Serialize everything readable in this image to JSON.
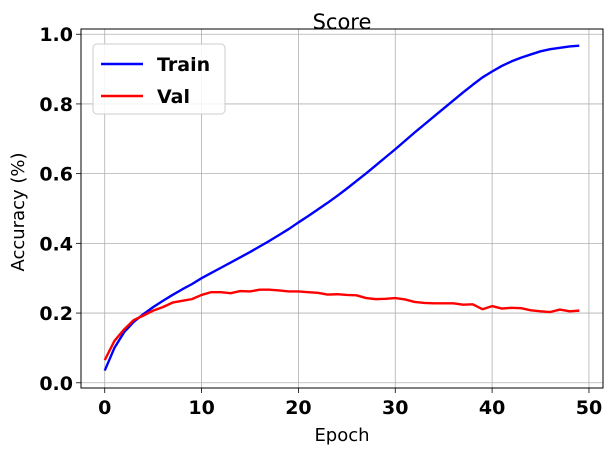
{
  "chart_data": {
    "type": "line",
    "title": "Score",
    "xlabel": "Epoch",
    "ylabel": "Accuracy (%)",
    "xlim": [
      -2.45,
      51.45
    ],
    "ylim": [
      -0.015,
      1.015
    ],
    "xticks": [
      0,
      10,
      20,
      30,
      40,
      50
    ],
    "yticks": [
      0.0,
      0.2,
      0.4,
      0.6,
      0.8,
      1.0
    ],
    "xtick_labels": [
      "0",
      "10",
      "20",
      "30",
      "40",
      "50"
    ],
    "ytick_labels": [
      "0.0",
      "0.2",
      "0.4",
      "0.6",
      "0.8",
      "1.0"
    ],
    "grid": true,
    "legend_position": "top-left",
    "x": [
      0,
      1,
      2,
      3,
      4,
      5,
      6,
      7,
      8,
      9,
      10,
      11,
      12,
      13,
      14,
      15,
      16,
      17,
      18,
      19,
      20,
      21,
      22,
      23,
      24,
      25,
      26,
      27,
      28,
      29,
      30,
      31,
      32,
      33,
      34,
      35,
      36,
      37,
      38,
      39,
      40,
      41,
      42,
      43,
      44,
      45,
      46,
      47,
      48,
      49
    ],
    "series": [
      {
        "name": "Train",
        "color": "#0000ff",
        "values": [
          0.035,
          0.1,
          0.145,
          0.175,
          0.197,
          0.217,
          0.235,
          0.252,
          0.268,
          0.283,
          0.3,
          0.315,
          0.33,
          0.345,
          0.36,
          0.375,
          0.391,
          0.407,
          0.424,
          0.441,
          0.46,
          0.478,
          0.497,
          0.516,
          0.536,
          0.557,
          0.579,
          0.601,
          0.624,
          0.647,
          0.67,
          0.694,
          0.718,
          0.741,
          0.764,
          0.787,
          0.81,
          0.833,
          0.855,
          0.876,
          0.893,
          0.909,
          0.922,
          0.933,
          0.942,
          0.951,
          0.957,
          0.961,
          0.965,
          0.967
        ]
      },
      {
        "name": "Val",
        "color": "#ff0000",
        "values": [
          0.065,
          0.12,
          0.153,
          0.18,
          0.193,
          0.207,
          0.217,
          0.23,
          0.235,
          0.24,
          0.252,
          0.26,
          0.26,
          0.257,
          0.263,
          0.262,
          0.267,
          0.267,
          0.265,
          0.262,
          0.262,
          0.26,
          0.258,
          0.253,
          0.254,
          0.252,
          0.251,
          0.243,
          0.24,
          0.241,
          0.243,
          0.239,
          0.232,
          0.229,
          0.228,
          0.228,
          0.228,
          0.224,
          0.225,
          0.211,
          0.22,
          0.213,
          0.215,
          0.214,
          0.208,
          0.205,
          0.203,
          0.21,
          0.205,
          0.207
        ]
      }
    ]
  }
}
